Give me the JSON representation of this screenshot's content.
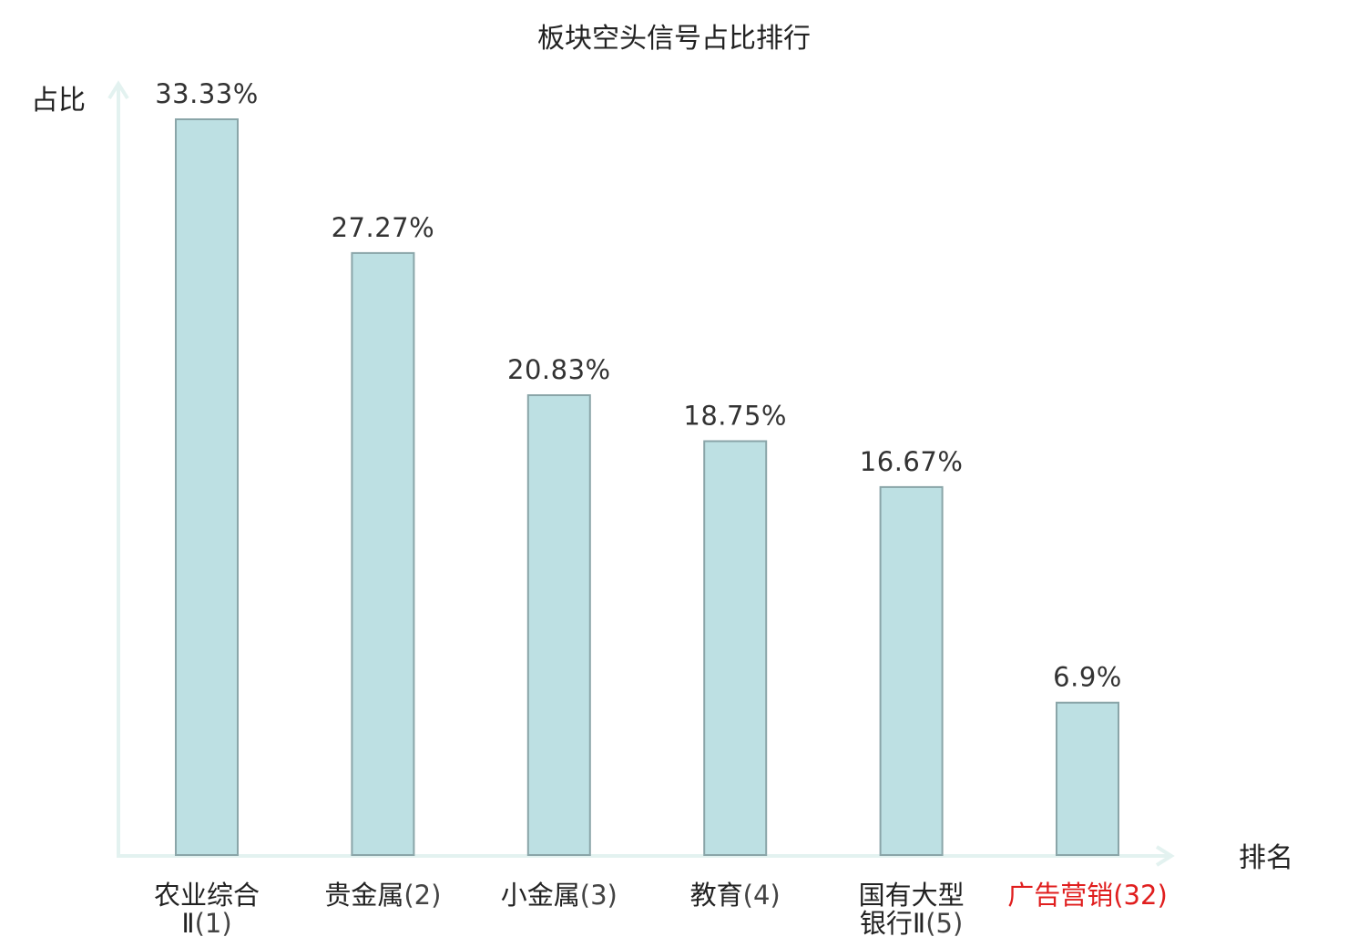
{
  "chart_data": {
    "type": "bar",
    "title": "板块空头信号占比排行",
    "ylabel": "占比",
    "xlabel": "排名",
    "categories": [
      {
        "name": "农业综合Ⅱ",
        "rank": "(1)",
        "lines": [
          "农业综合",
          "Ⅱ"
        ],
        "highlight": false
      },
      {
        "name": "贵金属",
        "rank": "(2)",
        "lines": [
          "贵金属"
        ],
        "highlight": false
      },
      {
        "name": "小金属",
        "rank": "(3)",
        "lines": [
          "小金属"
        ],
        "highlight": false
      },
      {
        "name": "教育",
        "rank": "(4)",
        "lines": [
          "教育"
        ],
        "highlight": false
      },
      {
        "name": "国有大型银行Ⅱ",
        "rank": "(5)",
        "lines": [
          "国有大型",
          "银行Ⅱ"
        ],
        "highlight": false
      },
      {
        "name": "广告营销",
        "rank": "(32)",
        "lines": [
          "广告营销"
        ],
        "highlight": true
      }
    ],
    "values": [
      33.33,
      27.27,
      20.83,
      18.75,
      16.67,
      6.9
    ],
    "value_labels": [
      "33.33%",
      "27.27%",
      "20.83%",
      "18.75%",
      "16.67%",
      "6.9%"
    ],
    "ylim": [
      0,
      33.33
    ],
    "grid": false,
    "legend": "none",
    "colors": {
      "bar_fill": "#bde0e3",
      "bar_stroke": "#8aa5a8",
      "axis": "#e3f2f0",
      "highlight_text": "#e01e1e"
    }
  }
}
